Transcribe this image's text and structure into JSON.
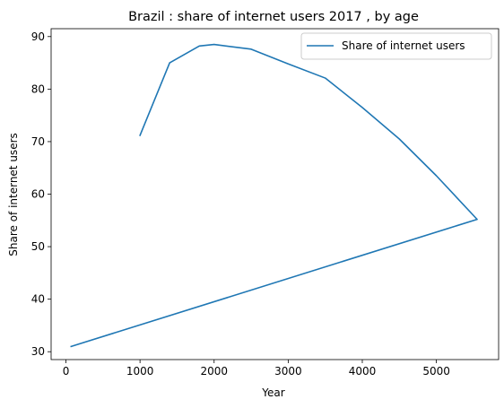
{
  "chart_data": {
    "type": "line",
    "title": "Brazil : share of internet users 2017 , by age",
    "xlabel": "Year",
    "ylabel": "Share of internet users",
    "xlim": [
      -200,
      5840
    ],
    "ylim": [
      28.5,
      91.5
    ],
    "xticks": [
      0,
      1000,
      2000,
      3000,
      4000,
      5000
    ],
    "yticks": [
      30,
      40,
      50,
      60,
      70,
      80,
      90
    ],
    "grid": false,
    "legend_position": "upper right",
    "series": [
      {
        "name": "Share of internet users",
        "color": "#1f77b4",
        "x": [
          1000,
          1400,
          1800,
          2000,
          2500,
          3000,
          3500,
          4000,
          4500,
          5000,
          5550,
          70
        ],
        "y": [
          71.2,
          85.0,
          88.2,
          88.5,
          87.6,
          84.8,
          82.1,
          76.5,
          70.5,
          63.5,
          55.2,
          31.0
        ]
      }
    ]
  }
}
